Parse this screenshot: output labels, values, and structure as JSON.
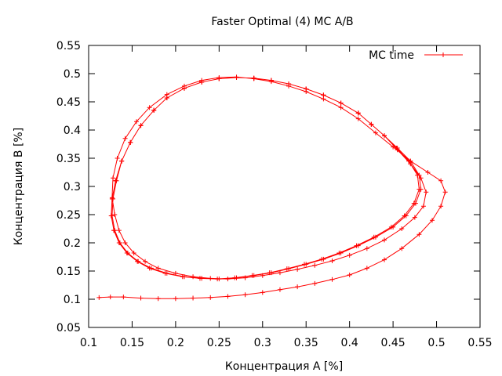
{
  "chart_data": {
    "type": "line",
    "title": "Faster Optimal (4) MC A/B",
    "xlabel": "Концентрация A [%]",
    "ylabel": "Концентрация B [%]",
    "xlim": [
      0.1,
      0.55
    ],
    "ylim": [
      0.05,
      0.55
    ],
    "xticks": [
      "0.1",
      "0.15",
      "0.2",
      "0.25",
      "0.3",
      "0.35",
      "0.4",
      "0.45",
      "0.5",
      "0.55"
    ],
    "yticks": [
      "0.05",
      "0.1",
      "0.15",
      "0.2",
      "0.25",
      "0.3",
      "0.35",
      "0.4",
      "0.45",
      "0.5",
      "0.55"
    ],
    "grid": false,
    "legend_position": "top-right",
    "color": "#ff0000",
    "series": [
      {
        "name": "MC time",
        "marker": "plus",
        "x": [
          0.112,
          0.125,
          0.14,
          0.16,
          0.18,
          0.2,
          0.22,
          0.24,
          0.26,
          0.28,
          0.3,
          0.32,
          0.34,
          0.36,
          0.38,
          0.4,
          0.42,
          0.44,
          0.46,
          0.48,
          0.495,
          0.505,
          0.51,
          0.505,
          0.49,
          0.47,
          0.45,
          0.43,
          0.41,
          0.39,
          0.37,
          0.35,
          0.33,
          0.31,
          0.29,
          0.27,
          0.25,
          0.23,
          0.21,
          0.19,
          0.17,
          0.155,
          0.142,
          0.133,
          0.128,
          0.127,
          0.13,
          0.135,
          0.142,
          0.152,
          0.165,
          0.18,
          0.2,
          0.22,
          0.24,
          0.26,
          0.28,
          0.3,
          0.32,
          0.34,
          0.36,
          0.38,
          0.4,
          0.42,
          0.44,
          0.46,
          0.475,
          0.485,
          0.488,
          0.482,
          0.47,
          0.455,
          0.44,
          0.425,
          0.41,
          0.39,
          0.37,
          0.35,
          0.33,
          0.31,
          0.29,
          0.27,
          0.25,
          0.23,
          0.21,
          0.19,
          0.175,
          0.16,
          0.148,
          0.138,
          0.132,
          0.128,
          0.127,
          0.13,
          0.136,
          0.145,
          0.157,
          0.172,
          0.19,
          0.21,
          0.23,
          0.25,
          0.27,
          0.29,
          0.31,
          0.33,
          0.35,
          0.37,
          0.39,
          0.41,
          0.43,
          0.45,
          0.465,
          0.476,
          0.482,
          0.48,
          0.47,
          0.455,
          0.44,
          0.425,
          0.41,
          0.39,
          0.37,
          0.35,
          0.33,
          0.31,
          0.29,
          0.27,
          0.25,
          0.23,
          0.21,
          0.19,
          0.175,
          0.16,
          0.148,
          0.138,
          0.131,
          0.127,
          0.126,
          0.129,
          0.135,
          0.144,
          0.156,
          0.17,
          0.188,
          0.208,
          0.228,
          0.248,
          0.268,
          0.288,
          0.308,
          0.328,
          0.348,
          0.368,
          0.388,
          0.408,
          0.428,
          0.448,
          0.463,
          0.474,
          0.48,
          0.478,
          0.468,
          0.454,
          0.44,
          0.425,
          0.41,
          0.39,
          0.37,
          0.35,
          0.33,
          0.31,
          0.29,
          0.27,
          0.25,
          0.23,
          0.21,
          0.19,
          0.175,
          0.16,
          0.148,
          0.138,
          0.131,
          0.127,
          0.126,
          0.129
        ],
        "y": [
          0.103,
          0.104,
          0.104,
          0.102,
          0.101,
          0.101,
          0.102,
          0.103,
          0.105,
          0.108,
          0.112,
          0.117,
          0.122,
          0.128,
          0.135,
          0.143,
          0.155,
          0.17,
          0.19,
          0.215,
          0.24,
          0.265,
          0.29,
          0.31,
          0.325,
          0.345,
          0.37,
          0.395,
          0.42,
          0.44,
          0.455,
          0.468,
          0.478,
          0.486,
          0.491,
          0.494,
          0.493,
          0.488,
          0.478,
          0.463,
          0.44,
          0.415,
          0.385,
          0.35,
          0.315,
          0.28,
          0.25,
          0.222,
          0.2,
          0.182,
          0.167,
          0.155,
          0.146,
          0.14,
          0.137,
          0.136,
          0.138,
          0.142,
          0.147,
          0.153,
          0.16,
          0.168,
          0.178,
          0.19,
          0.205,
          0.225,
          0.245,
          0.265,
          0.29,
          0.315,
          0.34,
          0.365,
          0.39,
          0.41,
          0.43,
          0.448,
          0.462,
          0.473,
          0.482,
          0.488,
          0.492,
          0.493,
          0.491,
          0.485,
          0.474,
          0.457,
          0.435,
          0.408,
          0.378,
          0.345,
          0.31,
          0.278,
          0.248,
          0.222,
          0.2,
          0.182,
          0.167,
          0.155,
          0.146,
          0.14,
          0.137,
          0.136,
          0.138,
          0.142,
          0.147,
          0.154,
          0.162,
          0.171,
          0.182,
          0.195,
          0.21,
          0.228,
          0.248,
          0.27,
          0.295,
          0.32,
          0.345,
          0.368,
          0.39,
          0.41,
          0.43,
          0.448,
          0.462,
          0.473,
          0.482,
          0.488,
          0.492,
          0.493,
          0.491,
          0.485,
          0.474,
          0.457,
          0.435,
          0.408,
          0.378,
          0.345,
          0.31,
          0.278,
          0.248,
          0.222,
          0.2,
          0.182,
          0.167,
          0.155,
          0.146,
          0.14,
          0.137,
          0.136,
          0.138,
          0.142,
          0.147,
          0.154,
          0.162,
          0.171,
          0.182,
          0.195,
          0.21,
          0.228,
          0.248,
          0.27,
          0.295,
          0.32,
          0.345,
          0.368,
          0.39,
          0.41,
          0.43,
          0.448,
          0.462,
          0.473,
          0.482,
          0.488,
          0.492,
          0.493,
          0.491,
          0.485,
          0.474,
          0.457,
          0.435,
          0.408,
          0.378,
          0.345,
          0.31,
          0.278,
          0.248,
          0.222
        ]
      }
    ]
  }
}
